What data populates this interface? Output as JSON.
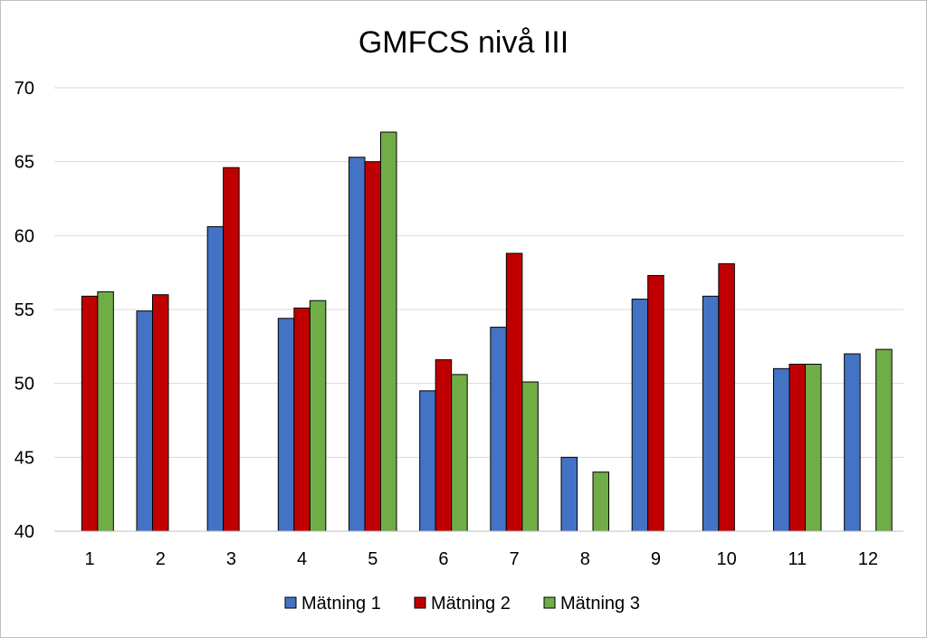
{
  "chart_data": {
    "type": "bar",
    "title": "GMFCS nivå III",
    "xlabel": "",
    "ylabel": "",
    "ylim": [
      40,
      70
    ],
    "yticks": [
      40,
      45,
      50,
      55,
      60,
      65,
      70
    ],
    "categories": [
      "1",
      "2",
      "3",
      "4",
      "5",
      "6",
      "7",
      "8",
      "9",
      "10",
      "11",
      "12"
    ],
    "grid": true,
    "legend_position": "bottom",
    "series": [
      {
        "name": "Mätning 1",
        "color": "#4472c4",
        "values": [
          null,
          54.9,
          60.6,
          54.4,
          65.3,
          49.5,
          53.8,
          45.0,
          55.7,
          55.9,
          51.0,
          52.0
        ]
      },
      {
        "name": "Mätning 2",
        "color": "#c00000",
        "values": [
          55.9,
          56.0,
          64.6,
          55.1,
          65.0,
          51.6,
          58.8,
          null,
          57.3,
          58.1,
          51.3,
          null
        ]
      },
      {
        "name": "Mätning 3",
        "color": "#70ad47",
        "values": [
          56.2,
          null,
          null,
          55.6,
          67.0,
          50.6,
          50.1,
          44.0,
          null,
          null,
          51.3,
          52.3
        ]
      }
    ]
  }
}
